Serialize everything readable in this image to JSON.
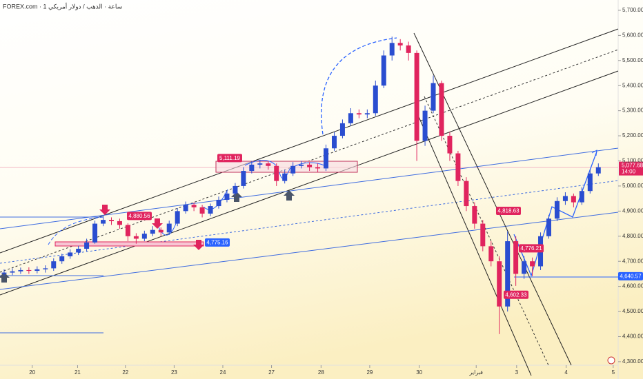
{
  "chart_data": {
    "type": "candlestick",
    "title": "FOREX.com · 1 ساعة · الذهب / دولار أمريكي",
    "up_color": "#2a4dd0",
    "down_color": "#e0245e",
    "xlim": [
      -0.5,
      73.9
    ],
    "xticks": [
      {
        "value": 3.4,
        "label": "20"
      },
      {
        "value": 8.9,
        "label": "21"
      },
      {
        "value": 14.7,
        "label": "22"
      },
      {
        "value": 20.6,
        "label": "23"
      },
      {
        "value": 26.5,
        "label": "24"
      },
      {
        "value": 32.4,
        "label": "27"
      },
      {
        "value": 38.4,
        "label": "28"
      },
      {
        "value": 44.3,
        "label": "29"
      },
      {
        "value": 50.3,
        "label": "30"
      },
      {
        "value": 57.2,
        "label": "فبراير"
      },
      {
        "value": 62.1,
        "label": "3"
      },
      {
        "value": 68.1,
        "label": "4"
      },
      {
        "value": 73.8,
        "label": "5"
      }
    ],
    "ylim": [
      4286,
      5741
    ],
    "yticks": [
      {
        "value": 4300,
        "label": "4,300.00"
      },
      {
        "value": 4400,
        "label": "4,400.00"
      },
      {
        "value": 4500,
        "label": "4,500.00"
      },
      {
        "value": 4600,
        "label": "4,600.00"
      },
      {
        "value": 4700,
        "label": "4,700.00"
      },
      {
        "value": 4800,
        "label": "4,800.00"
      },
      {
        "value": 4900,
        "label": "4,900.00"
      },
      {
        "value": 5000,
        "label": "5,000.00"
      },
      {
        "value": 5100,
        "label": "5,100.00"
      },
      {
        "value": 5200,
        "label": "5,200.00"
      },
      {
        "value": 5300,
        "label": "5,300.00"
      },
      {
        "value": 5400,
        "label": "5,400.00"
      },
      {
        "value": 5500,
        "label": "5,500.00"
      },
      {
        "value": 5600,
        "label": "5,600.00"
      },
      {
        "value": 5700,
        "label": "5,700.00"
      }
    ],
    "open": [
      4650,
      4655,
      4660,
      4665,
      4662,
      4668,
      4672,
      4700,
      4720,
      4735,
      4750,
      4775,
      4850,
      4865,
      4860,
      4845,
      4800,
      4790,
      4810,
      4825,
      4815,
      4850,
      4900,
      4925,
      4915,
      4890,
      4920,
      4945,
      4970,
      5000,
      5060,
      5085,
      5090,
      5080,
      5020,
      5050,
      5080,
      5085,
      5075,
      5070,
      5150,
      5200,
      5250,
      5290,
      5285,
      5290,
      5400,
      5520,
      5570,
      5560,
      5530,
      5180,
      5300,
      5410,
      5200,
      5130,
      5020,
      4920,
      4850,
      4760,
      4700,
      4520,
      4780,
      4650,
      4700,
      4680,
      4800,
      4870,
      4940,
      4960,
      4935,
      4980,
      5050
    ],
    "high": [
      4668,
      4672,
      4675,
      4676,
      4680,
      4684,
      4712,
      4730,
      4748,
      4762,
      4790,
      4862,
      4881,
      4875,
      4870,
      4852,
      4812,
      4822,
      4840,
      4835,
      4862,
      4912,
      4938,
      4935,
      4925,
      4930,
      4958,
      4982,
      5012,
      5075,
      5100,
      5105,
      5100,
      5090,
      5065,
      5095,
      5100,
      5095,
      5090,
      5165,
      5215,
      5265,
      5310,
      5305,
      5305,
      5420,
      5540,
      5595,
      5585,
      5575,
      5540,
      5320,
      5440,
      5420,
      5215,
      5140,
      5035,
      4935,
      4865,
      4780,
      4720,
      4820,
      4800,
      4720,
      4715,
      4815,
      4885,
      4955,
      4975,
      4970,
      4995,
      5065,
      5090
    ],
    "low": [
      4640,
      4645,
      4650,
      4650,
      4652,
      4655,
      4662,
      4690,
      4710,
      4725,
      4740,
      4770,
      4840,
      4845,
      4830,
      4780,
      4770,
      4780,
      4800,
      4800,
      4805,
      4840,
      4890,
      4900,
      4875,
      4880,
      4910,
      4935,
      4960,
      4990,
      5050,
      5070,
      5065,
      5000,
      5010,
      5040,
      5070,
      5060,
      5055,
      5060,
      5140,
      5190,
      5240,
      5270,
      5270,
      5280,
      5390,
      5500,
      5540,
      5500,
      5100,
      5160,
      5290,
      5180,
      5100,
      5000,
      4900,
      4830,
      4740,
      4680,
      4410,
      4500,
      4602,
      4630,
      4641,
      4665,
      4790,
      4860,
      4925,
      4915,
      4925,
      4970,
      5040
    ],
    "close": [
      4655,
      4660,
      4665,
      4662,
      4668,
      4672,
      4700,
      4720,
      4735,
      4750,
      4775,
      4850,
      4865,
      4860,
      4845,
      4800,
      4790,
      4810,
      4825,
      4815,
      4850,
      4900,
      4925,
      4915,
      4890,
      4920,
      4945,
      4970,
      5000,
      5060,
      5085,
      5090,
      5080,
      5020,
      5050,
      5080,
      5085,
      5075,
      5070,
      5150,
      5200,
      5250,
      5290,
      5285,
      5290,
      5400,
      5520,
      5570,
      5560,
      5530,
      5180,
      5300,
      5410,
      5200,
      5130,
      5020,
      4920,
      4850,
      4760,
      4700,
      4520,
      4780,
      4650,
      4700,
      4680,
      4800,
      4870,
      4940,
      4960,
      4935,
      4980,
      5050,
      5075
    ],
    "annotations": [
      {
        "text": "4,880.56",
        "value": 4880.56,
        "color": "#e0245e"
      },
      {
        "text": "4,775.16",
        "value": 4775.16,
        "color": "#2962ff"
      },
      {
        "text": "5,111.19",
        "value": 5111.19,
        "color": "#e0245e"
      },
      {
        "text": "4,818.63",
        "value": 4818.63,
        "color": "#e0245e"
      },
      {
        "text": "4,776.21",
        "value": 4776.21,
        "color": "#e0245e"
      },
      {
        "text": "4,602.33",
        "value": 4602.33,
        "color": "#e0245e"
      },
      {
        "text": "4,640.57",
        "value": 4640.57,
        "color": "#2962ff"
      }
    ],
    "last_price": {
      "value": 5077.68,
      "label": "5,077.68",
      "time": "14:00",
      "color": "#e0245e"
    }
  }
}
